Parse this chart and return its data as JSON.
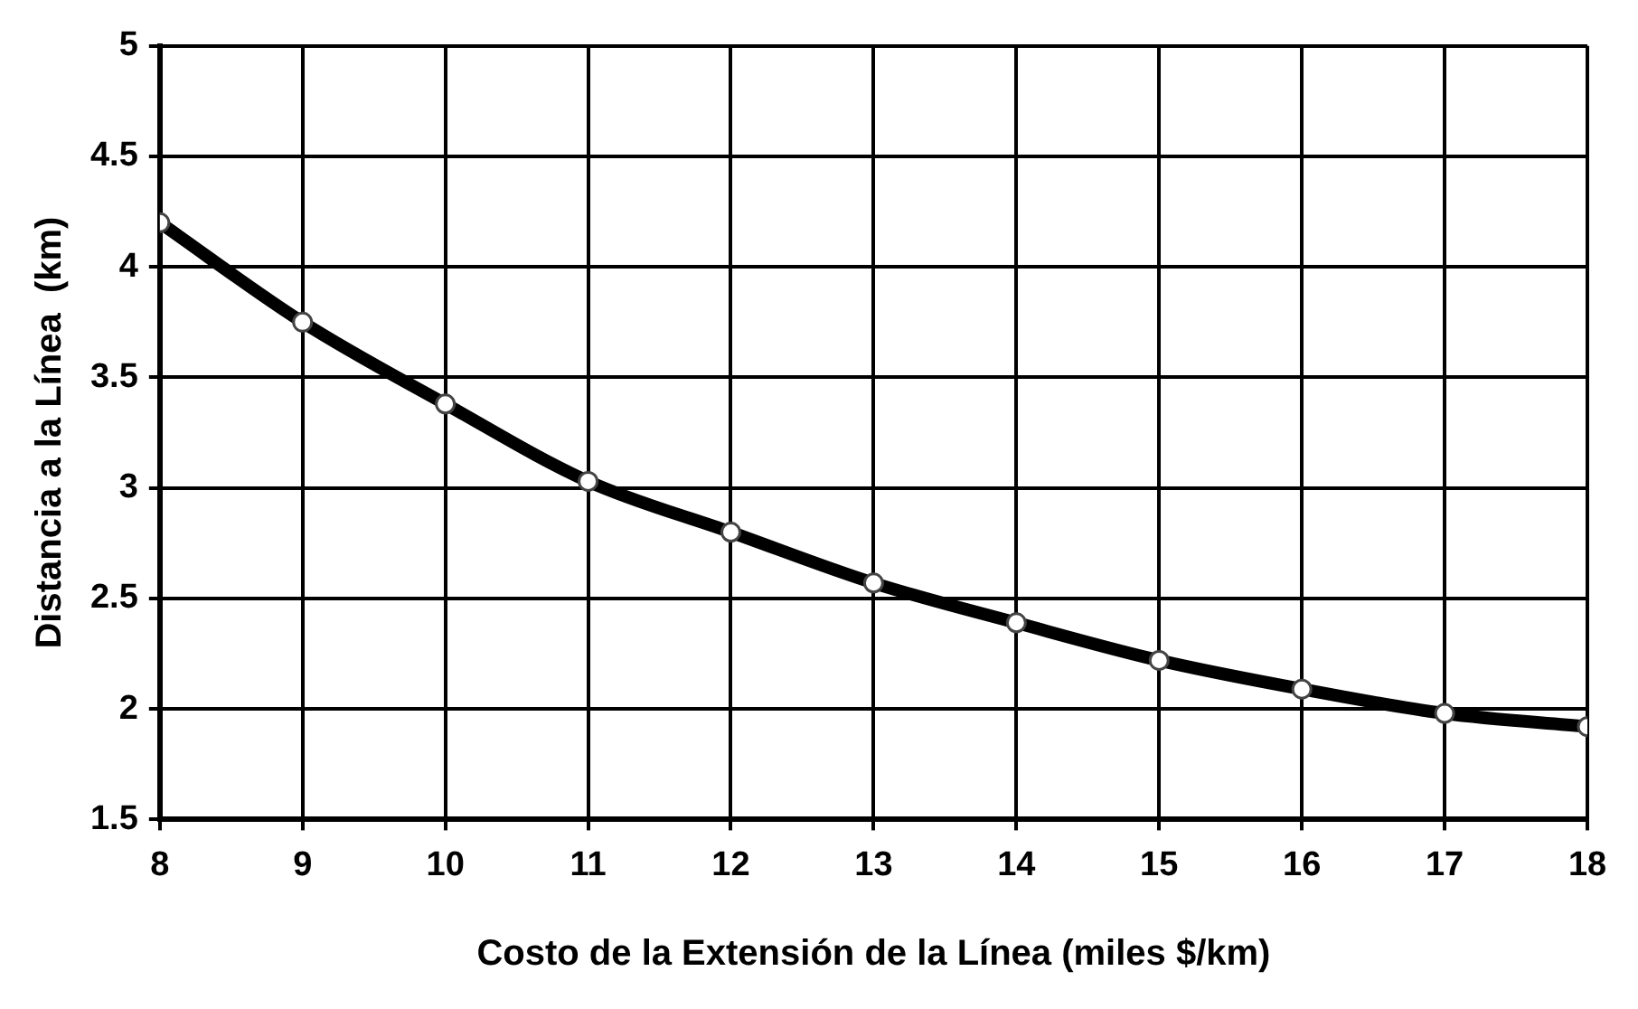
{
  "chart_data": {
    "type": "line",
    "xlabel": "Costo de la Extensión de la Línea (miles $/km)",
    "ylabel": "Distancia a la Línea  (km)",
    "x": [
      8,
      9,
      10,
      11,
      12,
      13,
      14,
      15,
      16,
      17,
      18
    ],
    "series": [
      {
        "color": "#000000",
        "values": [
          4.2,
          3.75,
          3.38,
          3.03,
          2.8,
          2.57,
          2.39,
          2.22,
          2.09,
          1.98,
          1.92
        ]
      }
    ],
    "xlim": [
      8,
      18
    ],
    "xticks": [
      8,
      9,
      10,
      11,
      12,
      13,
      14,
      15,
      16,
      17,
      18
    ],
    "ylim": [
      1.5,
      5
    ],
    "yticks": [
      1.5,
      2,
      2.5,
      3,
      3.5,
      4,
      4.5,
      5
    ],
    "grid": true,
    "legend": false,
    "marker": "circle",
    "line_style": "solid"
  }
}
